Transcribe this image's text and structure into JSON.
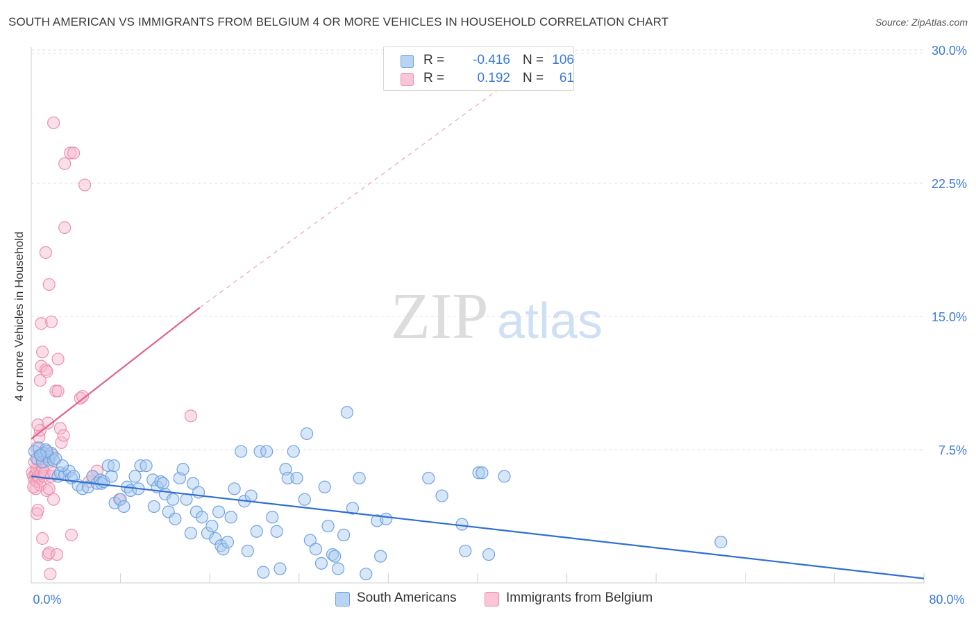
{
  "header": {
    "title": "SOUTH AMERICAN VS IMMIGRANTS FROM BELGIUM 4 OR MORE VEHICLES IN HOUSEHOLD CORRELATION CHART",
    "source": "Source: ZipAtlas.com"
  },
  "watermark": {
    "zip": "ZIP",
    "atlas": "atlas"
  },
  "legend": {
    "rows": [
      {
        "r_label": "R =",
        "r_value": "-0.416",
        "n_label": "N =",
        "n_value": "106"
      },
      {
        "r_label": "R =",
        "r_value": "0.192",
        "n_label": "N =",
        "n_value": "61"
      }
    ]
  },
  "bottom_legend": {
    "items": [
      {
        "label": "South Americans"
      },
      {
        "label": "Immigrants from Belgium"
      }
    ]
  },
  "colors": {
    "blue_fill": "#a9c9f0",
    "blue_stroke": "#6fa2e0",
    "blue_line": "#2f6fd0",
    "pink_fill": "#f6b9cc",
    "pink_stroke": "#ec8fb0",
    "pink_line": "#e0608e",
    "axis_text": "#3c7bd6",
    "grid": "#e1e1e1"
  },
  "chart_data": {
    "type": "scatter",
    "title": "SOUTH AMERICAN VS IMMIGRANTS FROM BELGIUM 4 OR MORE VEHICLES IN HOUSEHOLD CORRELATION CHART",
    "xlabel": "",
    "ylabel": "4 or more Vehicles in Household",
    "xlim": [
      0,
      80
    ],
    "ylim": [
      0,
      30
    ],
    "x_tick_labels": [
      "0.0%",
      "80.0%"
    ],
    "y_ticks": [
      7.5,
      15,
      22.5,
      30
    ],
    "y_tick_labels": [
      "7.5%",
      "15.0%",
      "22.5%",
      "30.0%"
    ],
    "grid": "horizontal dashed",
    "legend_position": "top-center",
    "series": [
      {
        "name": "South Americans",
        "color": "#6fa2e0",
        "stats": {
          "R": -0.416,
          "N": 106
        },
        "trend": {
          "x": [
            0,
            80
          ],
          "y": [
            6.0,
            0.25
          ],
          "style": "solid"
        },
        "points": [
          [
            0.3,
            7.4
          ],
          [
            0.5,
            7.0
          ],
          [
            0.7,
            7.6
          ],
          [
            0.9,
            7.2
          ],
          [
            1.0,
            6.8
          ],
          [
            1.1,
            7.3
          ],
          [
            1.3,
            7.5
          ],
          [
            1.5,
            7.1
          ],
          [
            1.6,
            6.9
          ],
          [
            1.8,
            7.3
          ],
          [
            2.0,
            6.9
          ],
          [
            2.2,
            7.0
          ],
          [
            1.4,
            7.4
          ],
          [
            0.8,
            7.2
          ],
          [
            2.4,
            6.0
          ],
          [
            2.6,
            6.2
          ],
          [
            3.0,
            6.1
          ],
          [
            3.4,
            6.3
          ],
          [
            3.6,
            5.9
          ],
          [
            3.8,
            6.0
          ],
          [
            2.8,
            6.6
          ],
          [
            4.2,
            5.5
          ],
          [
            4.6,
            5.3
          ],
          [
            5.1,
            5.4
          ],
          [
            5.5,
            6.0
          ],
          [
            5.9,
            5.6
          ],
          [
            6.2,
            5.8
          ],
          [
            6.3,
            5.6
          ],
          [
            6.5,
            5.7
          ],
          [
            6.9,
            6.6
          ],
          [
            7.2,
            6.0
          ],
          [
            7.4,
            6.6
          ],
          [
            7.5,
            4.5
          ],
          [
            8.0,
            4.7
          ],
          [
            8.3,
            4.3
          ],
          [
            8.6,
            5.4
          ],
          [
            8.9,
            5.2
          ],
          [
            9.3,
            6.0
          ],
          [
            9.6,
            5.3
          ],
          [
            9.8,
            6.6
          ],
          [
            10.3,
            6.6
          ],
          [
            10.9,
            5.8
          ],
          [
            11.0,
            4.3
          ],
          [
            11.3,
            5.4
          ],
          [
            11.6,
            5.7
          ],
          [
            11.8,
            5.6
          ],
          [
            12.0,
            5.0
          ],
          [
            12.3,
            4.0
          ],
          [
            12.7,
            4.7
          ],
          [
            12.9,
            3.6
          ],
          [
            13.3,
            5.9
          ],
          [
            13.6,
            6.4
          ],
          [
            13.9,
            4.7
          ],
          [
            14.3,
            2.8
          ],
          [
            14.5,
            5.6
          ],
          [
            14.8,
            4.0
          ],
          [
            15.0,
            5.1
          ],
          [
            15.3,
            3.7
          ],
          [
            15.8,
            2.8
          ],
          [
            16.2,
            3.2
          ],
          [
            16.5,
            2.5
          ],
          [
            16.8,
            4.0
          ],
          [
            17.0,
            2.1
          ],
          [
            17.2,
            1.9
          ],
          [
            17.6,
            2.3
          ],
          [
            17.9,
            3.7
          ],
          [
            18.2,
            5.3
          ],
          [
            18.8,
            7.4
          ],
          [
            19.1,
            4.6
          ],
          [
            19.4,
            1.8
          ],
          [
            19.7,
            4.9
          ],
          [
            20.2,
            2.9
          ],
          [
            20.5,
            7.4
          ],
          [
            20.8,
            0.6
          ],
          [
            21.1,
            7.4
          ],
          [
            21.6,
            3.7
          ],
          [
            22.0,
            2.9
          ],
          [
            22.3,
            0.8
          ],
          [
            22.8,
            6.4
          ],
          [
            23.0,
            5.9
          ],
          [
            23.5,
            7.4
          ],
          [
            23.8,
            5.9
          ],
          [
            24.5,
            4.7
          ],
          [
            24.7,
            8.4
          ],
          [
            25.0,
            2.4
          ],
          [
            25.5,
            1.9
          ],
          [
            26.0,
            1.1
          ],
          [
            26.3,
            5.4
          ],
          [
            26.6,
            3.2
          ],
          [
            27.0,
            1.6
          ],
          [
            27.2,
            1.5
          ],
          [
            27.5,
            0.8
          ],
          [
            28.0,
            2.7
          ],
          [
            28.3,
            9.6
          ],
          [
            28.8,
            4.2
          ],
          [
            29.4,
            5.9
          ],
          [
            30.0,
            0.5
          ],
          [
            31.0,
            3.5
          ],
          [
            31.3,
            1.5
          ],
          [
            31.8,
            3.6
          ],
          [
            35.6,
            5.9
          ],
          [
            36.8,
            4.9
          ],
          [
            38.6,
            3.3
          ],
          [
            38.9,
            1.8
          ],
          [
            40.1,
            6.2
          ],
          [
            40.4,
            6.2
          ],
          [
            41.0,
            1.6
          ],
          [
            42.4,
            6.0
          ],
          [
            61.8,
            2.3
          ]
        ]
      },
      {
        "name": "Immigrants from Belgium",
        "color": "#ec8fb0",
        "stats": {
          "R": 0.192,
          "N": 61
        },
        "trend": {
          "x": [
            0,
            15.1
          ],
          "y": [
            8.1,
            15.5
          ],
          "style": "solid",
          "extension": {
            "x": [
              15.1,
              43.0
            ],
            "y": [
              15.5,
              28.3
            ],
            "style": "dashed"
          }
        },
        "points": [
          [
            0.1,
            6.2
          ],
          [
            0.2,
            6.0
          ],
          [
            0.3,
            5.8
          ],
          [
            0.4,
            6.1
          ],
          [
            0.4,
            5.3
          ],
          [
            0.5,
            5.7
          ],
          [
            0.5,
            6.4
          ],
          [
            0.6,
            6.0
          ],
          [
            0.7,
            5.9
          ],
          [
            0.8,
            5.5
          ],
          [
            0.9,
            6.2
          ],
          [
            1.0,
            6.5
          ],
          [
            1.1,
            6.0
          ],
          [
            0.2,
            5.4
          ],
          [
            0.3,
            6.8
          ],
          [
            0.6,
            6.9
          ],
          [
            0.9,
            7.0
          ],
          [
            1.3,
            7.3
          ],
          [
            1.5,
            6.9
          ],
          [
            1.7,
            7.1
          ],
          [
            1.9,
            7.2
          ],
          [
            0.5,
            7.6
          ],
          [
            0.7,
            8.2
          ],
          [
            0.8,
            8.6
          ],
          [
            0.6,
            8.9
          ],
          [
            1.2,
            6.2
          ],
          [
            1.4,
            5.2
          ],
          [
            1.6,
            5.3
          ],
          [
            1.8,
            6.0
          ],
          [
            2.0,
            6.2
          ],
          [
            0.5,
            3.9
          ],
          [
            0.6,
            4.1
          ],
          [
            1.0,
            2.5
          ],
          [
            1.5,
            1.6
          ],
          [
            1.6,
            1.7
          ],
          [
            1.7,
            0.5
          ],
          [
            2.3,
            1.6
          ],
          [
            3.6,
            2.7
          ],
          [
            0.8,
            11.4
          ],
          [
            0.9,
            12.2
          ],
          [
            1.0,
            13.0
          ],
          [
            1.3,
            12.0
          ],
          [
            1.4,
            11.9
          ],
          [
            1.5,
            9.0
          ],
          [
            1.6,
            16.8
          ],
          [
            1.8,
            14.7
          ],
          [
            2.2,
            10.8
          ],
          [
            2.4,
            10.8
          ],
          [
            2.4,
            12.6
          ],
          [
            2.6,
            8.7
          ],
          [
            2.7,
            7.9
          ],
          [
            2.9,
            8.3
          ],
          [
            0.9,
            14.6
          ],
          [
            1.3,
            18.6
          ],
          [
            2.0,
            25.9
          ],
          [
            3.0,
            23.6
          ],
          [
            3.5,
            24.2
          ],
          [
            3.8,
            24.2
          ],
          [
            4.4,
            10.4
          ],
          [
            4.6,
            10.5
          ],
          [
            4.8,
            22.4
          ],
          [
            5.2,
            5.7
          ],
          [
            5.5,
            6.0
          ],
          [
            3.0,
            20.0
          ],
          [
            2.0,
            4.7
          ],
          [
            7.9,
            4.7
          ],
          [
            14.3,
            9.4
          ],
          [
            5.9,
            6.3
          ]
        ]
      }
    ]
  }
}
